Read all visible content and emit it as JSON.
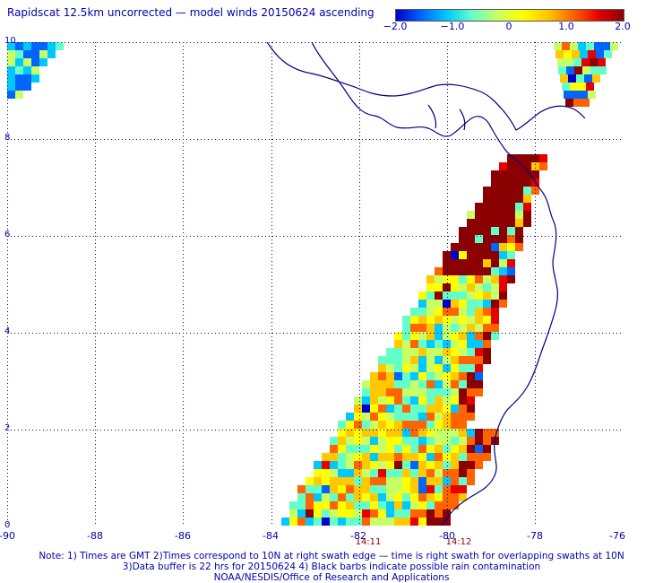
{
  "title": "Rapidscat 12.5km uncorrected — model winds 20150624 ascending",
  "colorbar": {
    "ticks": [
      "−2.0",
      "−1.0",
      "0",
      "1.0",
      "2.0"
    ],
    "colors": [
      "#0000c8",
      "#0064ff",
      "#00c8ff",
      "#64ffc8",
      "#c8ff64",
      "#ffff00",
      "#ffc800",
      "#ff6400",
      "#e60000",
      "#8b0000"
    ]
  },
  "axes": {
    "x_ticks": [
      "-90",
      "-88",
      "-86",
      "-84",
      "-82",
      "-80",
      "-78",
      "-76"
    ],
    "y_ticks": [
      "10",
      "8",
      "6",
      "4",
      "2",
      "0"
    ],
    "xlim": [
      -90,
      -76
    ],
    "ylim": [
      0,
      10
    ]
  },
  "swath_times": [
    "14:11",
    "14:12"
  ],
  "notes": [
    "Note: 1) Times are GMT 2)Times correspond to 10N at right swath edge — time is right swath for overlapping swaths at 10N",
    "3)Data buffer is 22 hrs for 20150624 4) Black barbs indicate possible rain contamination",
    "NOAA/NESDIS/Office of Research and Applications"
  ]
}
